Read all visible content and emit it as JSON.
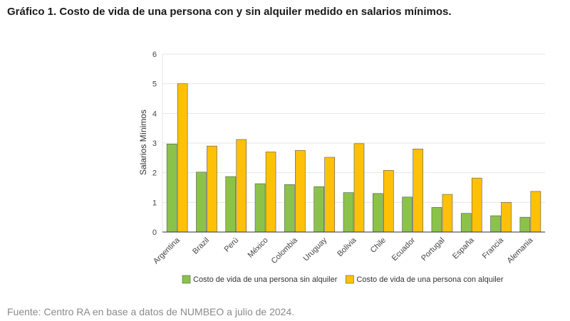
{
  "page": {
    "title": "Gráfico 1. Costo de vida de una persona con y sin alquiler medido en salarios mínimos.",
    "source": "Fuente: Centro RA en base a datos de NUMBEO a julio de 2024."
  },
  "colors": {
    "series_without_rent": "#8bc34a",
    "series_with_rent": "#ffc107",
    "grid": "#e6e6e6",
    "axis": "#333333"
  },
  "chart_data": {
    "type": "bar",
    "title": "",
    "xlabel": "",
    "ylabel": "Salarios Mínimos",
    "ylim": [
      0,
      6
    ],
    "yticks": [
      0,
      1,
      2,
      3,
      4,
      5,
      6
    ],
    "grid": true,
    "legend_position": "bottom",
    "categories": [
      "Argentina",
      "Brazil",
      "Perú",
      "México",
      "Colombia",
      "Uruguay",
      "Bolivia",
      "Chile",
      "Ecuador",
      "Portugal",
      "España",
      "Francia",
      "Alemania"
    ],
    "series": [
      {
        "name": "Costo de vida de una persona sin alquiler",
        "values": [
          2.97,
          2.02,
          1.87,
          1.63,
          1.6,
          1.53,
          1.33,
          1.3,
          1.18,
          0.83,
          0.63,
          0.55,
          0.5
        ]
      },
      {
        "name": "Costo de vida de una persona con alquiler",
        "values": [
          5.0,
          2.9,
          3.12,
          2.7,
          2.75,
          2.52,
          2.98,
          2.08,
          2.8,
          1.27,
          1.82,
          1.0,
          1.37
        ]
      }
    ]
  }
}
